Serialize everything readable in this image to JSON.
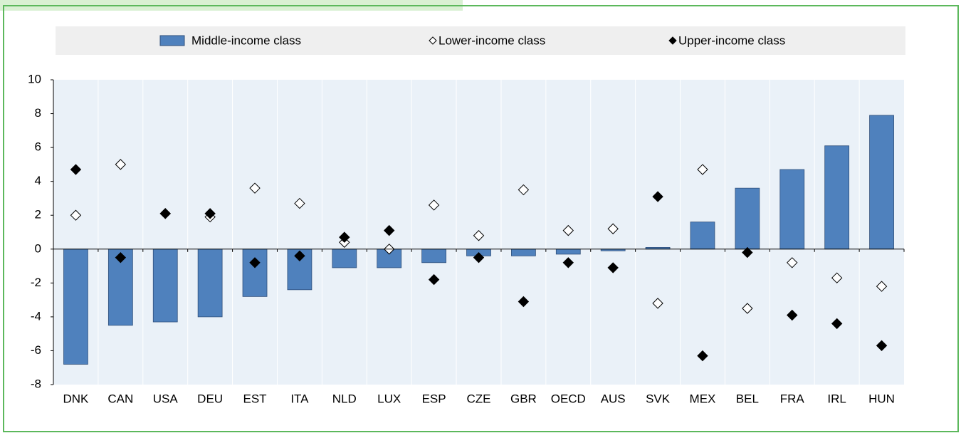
{
  "chart_data": {
    "type": "bar",
    "categories": [
      "DNK",
      "CAN",
      "USA",
      "DEU",
      "EST",
      "ITA",
      "NLD",
      "LUX",
      "ESP",
      "CZE",
      "GBR",
      "OECD",
      "AUS",
      "SVK",
      "MEX",
      "BEL",
      "FRA",
      "IRL",
      "HUN"
    ],
    "series": [
      {
        "name": "Middle-income class",
        "color": "#4f81bd",
        "values": [
          -6.8,
          -4.5,
          -4.3,
          -4.0,
          -2.8,
          -2.4,
          -1.1,
          -1.1,
          -0.8,
          -0.4,
          -0.4,
          -0.3,
          -0.1,
          0.1,
          1.6,
          3.6,
          4.7,
          6.1,
          7.9
        ]
      },
      {
        "name": "Lower-income class",
        "color": "#ffffff",
        "values": [
          2.0,
          5.0,
          2.1,
          1.9,
          3.6,
          2.7,
          0.4,
          0.0,
          2.6,
          0.8,
          3.5,
          1.1,
          1.2,
          -3.2,
          4.7,
          -3.5,
          -0.8,
          -1.7,
          -2.2
        ]
      },
      {
        "name": "Upper-income class",
        "color": "#000000",
        "values": [
          4.7,
          -0.5,
          2.1,
          2.1,
          -0.8,
          -0.4,
          0.7,
          1.1,
          -1.8,
          -0.5,
          -3.1,
          -0.8,
          -1.1,
          3.1,
          -6.3,
          -0.2,
          -3.9,
          -4.4,
          -5.7
        ]
      }
    ],
    "ylim": [
      -8,
      10
    ],
    "yticks": [
      -8,
      -6,
      -4,
      -2,
      0,
      2,
      4,
      6,
      8,
      10
    ]
  }
}
